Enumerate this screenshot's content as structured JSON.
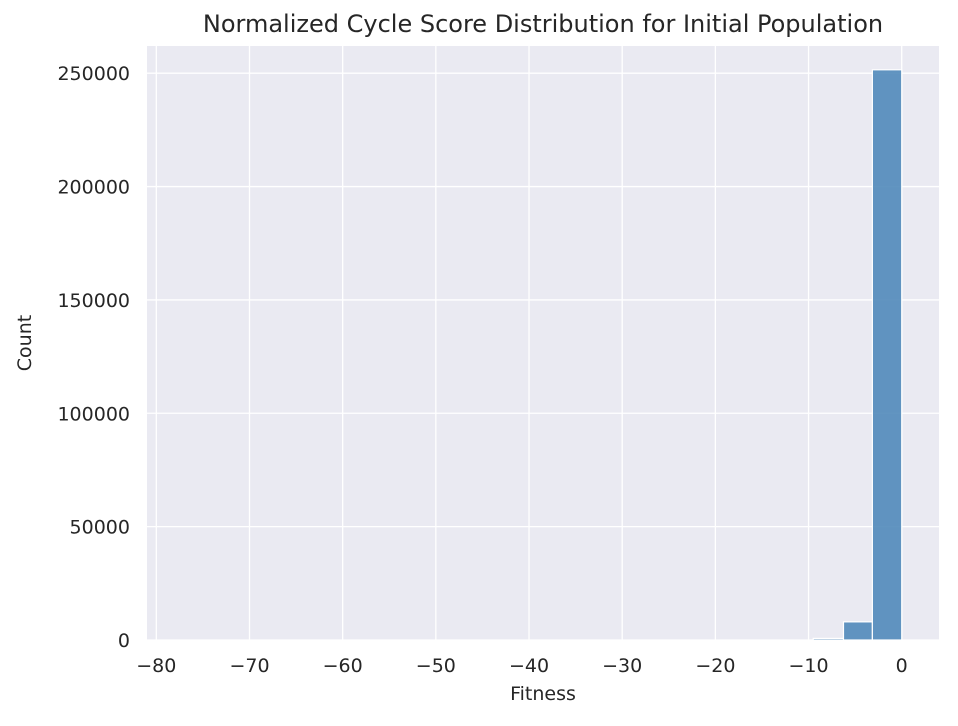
{
  "chart_data": {
    "type": "bar",
    "title": "Normalized Cycle Score Distribution for Initial Population",
    "xlabel": "Fitness",
    "ylabel": "Count",
    "xlim": [
      -81,
      4
    ],
    "ylim": [
      0,
      262000
    ],
    "xticks": [
      -80,
      -70,
      -60,
      -50,
      -40,
      -30,
      -20,
      -10,
      0
    ],
    "xtick_labels": [
      "−80",
      "−70",
      "−60",
      "−50",
      "−40",
      "−30",
      "−20",
      "−10",
      "0"
    ],
    "yticks": [
      0,
      50000,
      100000,
      150000,
      200000,
      250000
    ],
    "ytick_labels": [
      "0",
      "50000",
      "100000",
      "150000",
      "200000",
      "250000"
    ],
    "grid": true,
    "bar_color": "#4c86b8",
    "background_color": "#eaeaf2",
    "bins": [
      {
        "x0": -9.5,
        "x1": -6.25,
        "count": 700
      },
      {
        "x0": -6.25,
        "x1": -3.15,
        "count": 8000
      },
      {
        "x0": -3.15,
        "x1": 0.0,
        "count": 251500
      }
    ]
  }
}
